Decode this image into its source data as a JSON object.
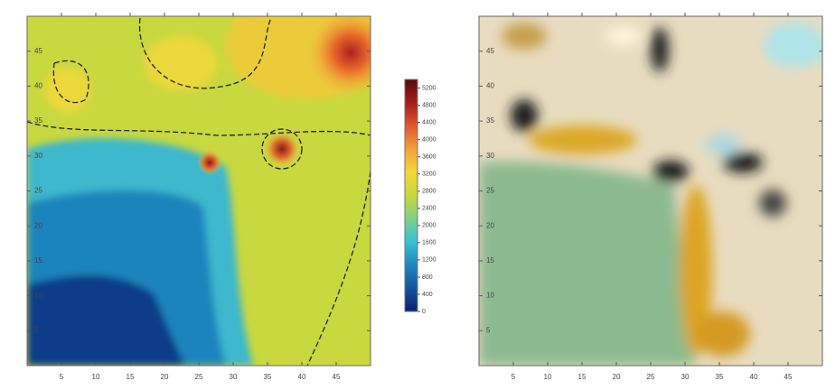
{
  "chart_data": [
    {
      "type": "contour",
      "xlim": [
        0,
        50
      ],
      "ylim": [
        0,
        50
      ],
      "xticks": [
        5,
        10,
        15,
        20,
        25,
        30,
        35,
        40,
        45
      ],
      "yticks": [
        5,
        10,
        15,
        20,
        25,
        30,
        35,
        40,
        45
      ],
      "colorbar": {
        "lim": [
          0,
          5400
        ],
        "ticks": [
          0,
          400,
          800,
          1200,
          1600,
          2000,
          2400,
          2800,
          3200,
          3600,
          4000,
          4400,
          4800,
          5200
        ],
        "colors": [
          "#0b1f6e",
          "#14549e",
          "#1f86c0",
          "#35c1d6",
          "#7fd08a",
          "#c6d83a",
          "#f2d83a",
          "#f4a23a",
          "#e0582a",
          "#a41c1c",
          "#5a0a0a"
        ]
      }
    },
    {
      "type": "image",
      "xlim": [
        0,
        50
      ],
      "ylim": [
        0,
        50
      ],
      "xticks": [
        5,
        10,
        15,
        20,
        25,
        30,
        35,
        40,
        45
      ],
      "yticks": [
        5,
        10,
        15,
        20,
        25,
        30,
        35,
        40,
        45
      ]
    }
  ]
}
